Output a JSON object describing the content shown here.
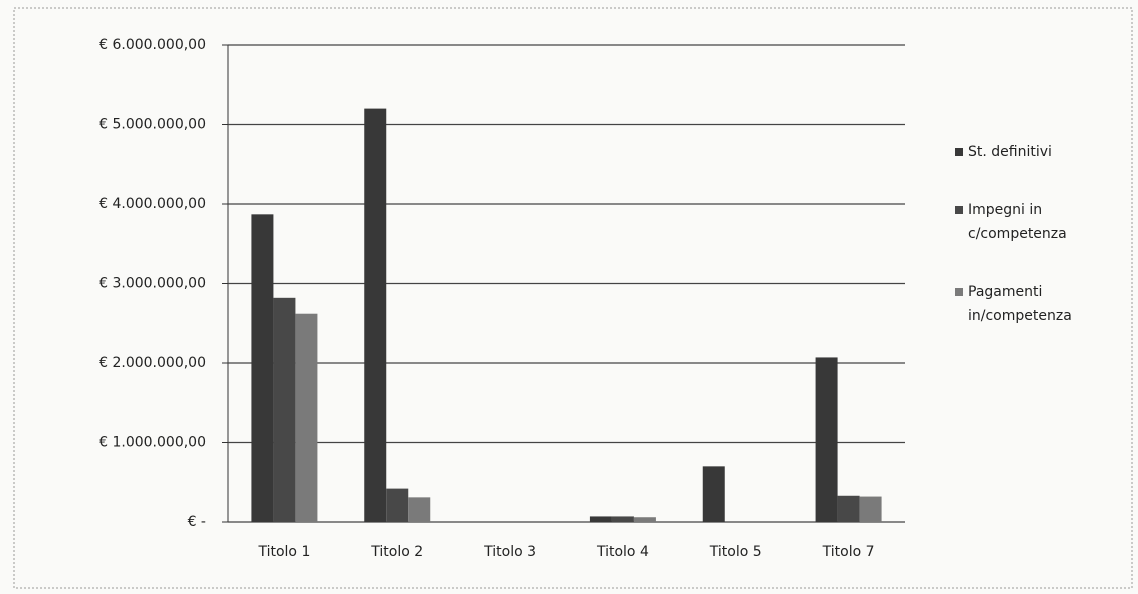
{
  "chart_data": {
    "type": "bar",
    "categories": [
      "Titolo 1",
      "Titolo 2",
      "Titolo 3",
      "Titolo 4",
      "Titolo 5",
      "Titolo 7"
    ],
    "series": [
      {
        "name": "St. definitivi",
        "color": "#383838",
        "values": [
          3870000,
          5200000,
          0,
          70000,
          700000,
          2070000
        ]
      },
      {
        "name": "Impegni in c/competenza",
        "color": "#484848",
        "values": [
          2820000,
          420000,
          0,
          70000,
          0,
          330000
        ]
      },
      {
        "name": "Pagamenti in/competenza",
        "color": "#7a7a7a",
        "values": [
          2620000,
          310000,
          0,
          60000,
          0,
          320000
        ]
      }
    ],
    "ylim": [
      0,
      6000000
    ],
    "yticks": [
      {
        "value": 0,
        "label": "€ -"
      },
      {
        "value": 1000000,
        "label": "€ 1.000.000,00"
      },
      {
        "value": 2000000,
        "label": "€ 2.000.000,00"
      },
      {
        "value": 3000000,
        "label": "€ 3.000.000,00"
      },
      {
        "value": 4000000,
        "label": "€ 4.000.000,00"
      },
      {
        "value": 5000000,
        "label": "€ 5.000.000,00"
      },
      {
        "value": 6000000,
        "label": "€ 6.000.000,00"
      }
    ],
    "grid": true,
    "legend": "right"
  }
}
